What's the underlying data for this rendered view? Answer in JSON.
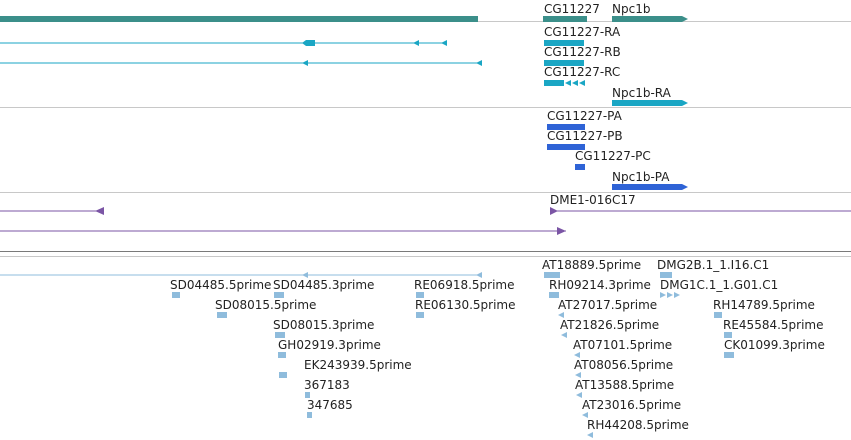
{
  "colors": {
    "gene": "#3b8f8a",
    "transcript": "#1aa6c4",
    "protein": "#2f63d6",
    "clone": "#7b55a5",
    "est": "#8fbcdc",
    "separator": "#c8c8c8"
  },
  "tracks": {
    "gene_labels": [
      "CG11227",
      "Npc1b"
    ],
    "transcript_labels": [
      "CG11227-RA",
      "CG11227-RB",
      "CG11227-RC",
      "Npc1b-RA"
    ],
    "protein_labels": [
      "CG11227-PA",
      "CG11227-PB",
      "CG11227-PC",
      "Npc1b-PA"
    ],
    "clone_labels": [
      "DME1-016C17"
    ],
    "est_labels": [
      "AT18889.5prime",
      "DMG2B.1_1.I16.C1",
      "RH09214.3prime",
      "DMG1C.1_1.G01.C1",
      "SD04485.5prime",
      "SD04485.3prime",
      "RE06918.5prime",
      "SD08015.5prime",
      "RE06130.5prime",
      "AT27017.5prime",
      "RH14789.5prime",
      "SD08015.3prime",
      "AT21826.5prime",
      "RE45584.5prime",
      "GH02919.3prime",
      "AT07101.5prime",
      "CK01099.3prime",
      "EK243939.5prime",
      "AT08056.5prime",
      "367183",
      "AT13588.5prime",
      "347685",
      "AT23016.5prime",
      "RH44208.5prime"
    ]
  }
}
